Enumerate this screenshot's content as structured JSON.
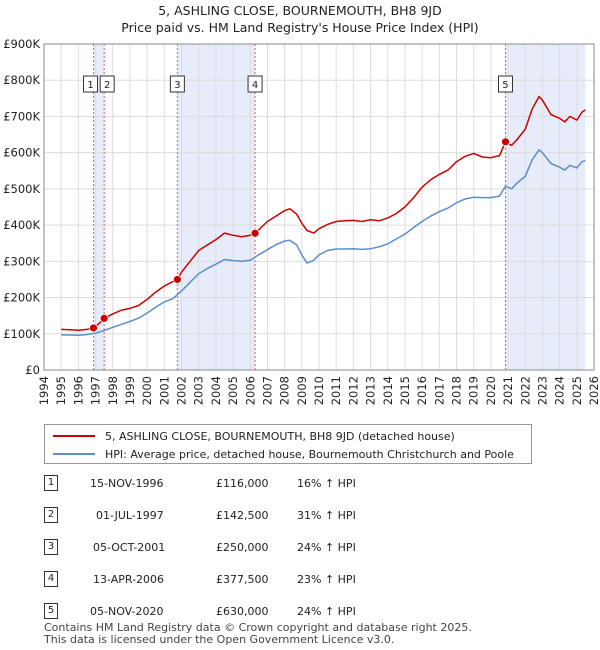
{
  "chart_data": {
    "type": "line",
    "title": "5, ASHLING CLOSE, BOURNEMOUTH, BH8 9JD",
    "subtitle": "Price paid vs. HM Land Registry's House Price Index (HPI)",
    "xlabel": "",
    "ylabel": "",
    "xlim": [
      1994,
      2026
    ],
    "ylim": [
      0,
      900000
    ],
    "y_ticks": [
      0,
      100000,
      200000,
      300000,
      400000,
      500000,
      600000,
      700000,
      800000,
      900000
    ],
    "y_tick_labels": [
      "£0",
      "£100K",
      "£200K",
      "£300K",
      "£400K",
      "£500K",
      "£600K",
      "£700K",
      "£800K",
      "£900K"
    ],
    "x_ticks": [
      1994,
      1995,
      1996,
      1997,
      1998,
      1999,
      2000,
      2001,
      2002,
      2003,
      2004,
      2005,
      2006,
      2007,
      2008,
      2009,
      2010,
      2011,
      2012,
      2013,
      2014,
      2015,
      2016,
      2017,
      2018,
      2019,
      2020,
      2021,
      2022,
      2023,
      2024,
      2025,
      2026
    ],
    "x_tick_labels": [
      "1994",
      "1995",
      "1996",
      "1997",
      "1998",
      "1999",
      "2000",
      "2001",
      "2002",
      "2003",
      "2004",
      "2005",
      "2006",
      "2007",
      "2008",
      "2009",
      "2010",
      "2011",
      "2012",
      "2013",
      "2014",
      "2015",
      "2016",
      "2017",
      "2018",
      "2019",
      "2020",
      "2021",
      "2022",
      "2023",
      "2024",
      "2025",
      "2026"
    ],
    "grid": true,
    "shaded_ranges": [
      [
        1996.88,
        1997.5
      ],
      [
        2001.76,
        2006.28
      ],
      [
        2020.85,
        2025.5
      ]
    ],
    "series": [
      {
        "name": "5, ASHLING CLOSE, BOURNEMOUTH, BH8 9JD (detached house)",
        "color": "#cc0000",
        "x": [
          1995.0,
          1995.5,
          1996.0,
          1996.5,
          1996.88,
          1997.2,
          1997.5,
          1998.0,
          1998.5,
          1999.0,
          1999.5,
          2000.0,
          2000.5,
          2001.0,
          2001.5,
          2001.76,
          2002.0,
          2002.5,
          2003.0,
          2003.5,
          2004.0,
          2004.5,
          2005.0,
          2005.5,
          2006.0,
          2006.28,
          2006.6,
          2007.0,
          2007.5,
          2008.0,
          2008.3,
          2008.7,
          2009.0,
          2009.3,
          2009.7,
          2010.0,
          2010.5,
          2011.0,
          2011.5,
          2012.0,
          2012.5,
          2013.0,
          2013.5,
          2014.0,
          2014.5,
          2015.0,
          2015.5,
          2016.0,
          2016.5,
          2017.0,
          2017.5,
          2018.0,
          2018.5,
          2019.0,
          2019.5,
          2020.0,
          2020.5,
          2020.85,
          2021.2,
          2021.5,
          2022.0,
          2022.4,
          2022.8,
          2023.0,
          2023.5,
          2024.0,
          2024.3,
          2024.6,
          2025.0,
          2025.3,
          2025.5
        ],
        "values": [
          112000,
          111000,
          110000,
          112000,
          116000,
          128000,
          142500,
          155000,
          165000,
          170000,
          178000,
          195000,
          215000,
          232000,
          244000,
          250000,
          270000,
          300000,
          330000,
          345000,
          360000,
          378000,
          372000,
          368000,
          372000,
          377500,
          392000,
          410000,
          425000,
          440000,
          445000,
          430000,
          405000,
          385000,
          378000,
          390000,
          402000,
          410000,
          412000,
          413000,
          410000,
          415000,
          412000,
          420000,
          432000,
          450000,
          475000,
          505000,
          525000,
          540000,
          552000,
          575000,
          590000,
          598000,
          588000,
          586000,
          592000,
          630000,
          620000,
          635000,
          665000,
          720000,
          755000,
          745000,
          705000,
          695000,
          685000,
          700000,
          690000,
          712000,
          718000
        ]
      },
      {
        "name": "HPI: Average price, detached house, Bournemouth Christchurch and Poole",
        "color": "#5b8ec9",
        "x": [
          1995.0,
          1995.5,
          1996.0,
          1996.5,
          1997.0,
          1997.5,
          1998.0,
          1998.5,
          1999.0,
          1999.5,
          2000.0,
          2000.5,
          2001.0,
          2001.5,
          2002.0,
          2002.5,
          2003.0,
          2003.5,
          2004.0,
          2004.5,
          2005.0,
          2005.5,
          2006.0,
          2006.5,
          2007.0,
          2007.5,
          2008.0,
          2008.3,
          2008.7,
          2009.0,
          2009.3,
          2009.7,
          2010.0,
          2010.5,
          2011.0,
          2011.5,
          2012.0,
          2012.5,
          2013.0,
          2013.5,
          2014.0,
          2014.5,
          2015.0,
          2015.5,
          2016.0,
          2016.5,
          2017.0,
          2017.5,
          2018.0,
          2018.5,
          2019.0,
          2019.5,
          2020.0,
          2020.5,
          2020.85,
          2021.2,
          2021.5,
          2022.0,
          2022.4,
          2022.8,
          2023.0,
          2023.5,
          2024.0,
          2024.3,
          2024.6,
          2025.0,
          2025.3,
          2025.5
        ],
        "values": [
          97000,
          96500,
          96000,
          98000,
          102000,
          109000,
          118000,
          126000,
          134000,
          143000,
          157000,
          173000,
          188000,
          197000,
          218000,
          242000,
          266000,
          280000,
          292000,
          305000,
          302000,
          300000,
          303000,
          318000,
          332000,
          346000,
          356000,
          358000,
          345000,
          318000,
          295000,
          303000,
          318000,
          330000,
          334000,
          334000,
          335000,
          333000,
          335000,
          340000,
          348000,
          362000,
          375000,
          393000,
          410000,
          425000,
          437000,
          447000,
          462000,
          472000,
          477000,
          476000,
          476000,
          480000,
          508000,
          500000,
          515000,
          535000,
          580000,
          608000,
          600000,
          570000,
          560000,
          552000,
          565000,
          558000,
          575000,
          578000
        ]
      }
    ],
    "sales": [
      {
        "label": "1",
        "x": 1996.88,
        "value": 116000
      },
      {
        "label": "2",
        "x": 1997.5,
        "value": 142500
      },
      {
        "label": "3",
        "x": 2001.76,
        "value": 250000
      },
      {
        "label": "4",
        "x": 2006.28,
        "value": 377500
      },
      {
        "label": "5",
        "x": 2020.85,
        "value": 630000
      }
    ]
  },
  "table": {
    "rows": [
      {
        "num": "1",
        "date": "15-NOV-1996",
        "price": "£116,000",
        "hpi": "16% ↑ HPI"
      },
      {
        "num": "2",
        "date": "01-JUL-1997",
        "price": "£142,500",
        "hpi": "31% ↑ HPI"
      },
      {
        "num": "3",
        "date": "05-OCT-2001",
        "price": "£250,000",
        "hpi": "24% ↑ HPI"
      },
      {
        "num": "4",
        "date": "13-APR-2006",
        "price": "£377,500",
        "hpi": "23% ↑ HPI"
      },
      {
        "num": "5",
        "date": "05-NOV-2020",
        "price": "£630,000",
        "hpi": "24% ↑ HPI"
      }
    ]
  },
  "footer": {
    "line1": "Contains HM Land Registry data © Crown copyright and database right 2025.",
    "line2": "This data is licensed under the Open Government Licence v3.0."
  }
}
